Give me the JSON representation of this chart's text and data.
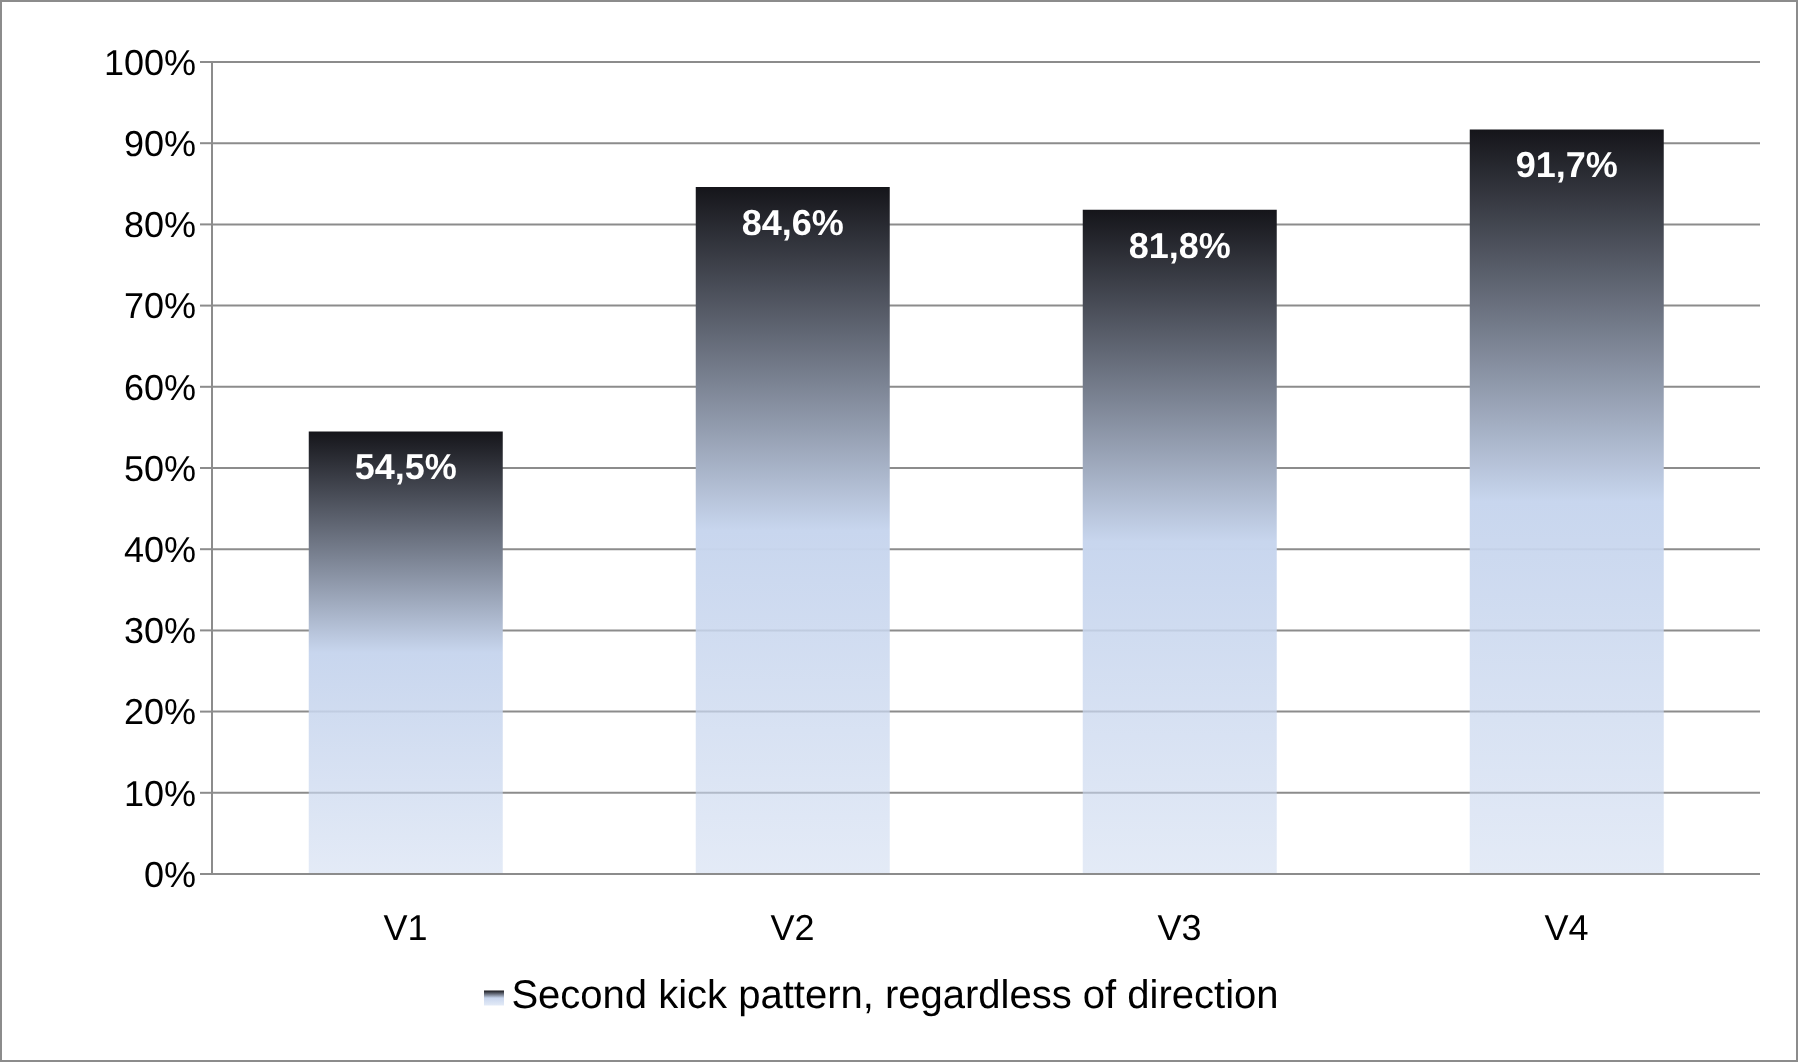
{
  "chart_data": {
    "type": "bar",
    "categories": [
      "V1",
      "V2",
      "V3",
      "V4"
    ],
    "series": [
      {
        "name": "Second kick pattern, regardless of direction",
        "color": "#c8d6ee",
        "values": [
          54.5,
          84.6,
          81.8,
          91.7
        ],
        "value_labels": [
          "54,5%",
          "84,6%",
          "81,8%",
          "91,7%"
        ]
      }
    ],
    "ylim": [
      0,
      100
    ],
    "yticks": [
      {
        "value": 0,
        "label": "0%"
      },
      {
        "value": 10,
        "label": "10%"
      },
      {
        "value": 20,
        "label": "20%"
      },
      {
        "value": 30,
        "label": "30%"
      },
      {
        "value": 40,
        "label": "40%"
      },
      {
        "value": 50,
        "label": "50%"
      },
      {
        "value": 60,
        "label": "60%"
      },
      {
        "value": 70,
        "label": "70%"
      },
      {
        "value": 80,
        "label": "80%"
      },
      {
        "value": 90,
        "label": "90%"
      },
      {
        "value": 100,
        "label": "100%"
      }
    ],
    "grid": "y",
    "legend": "bottom"
  }
}
